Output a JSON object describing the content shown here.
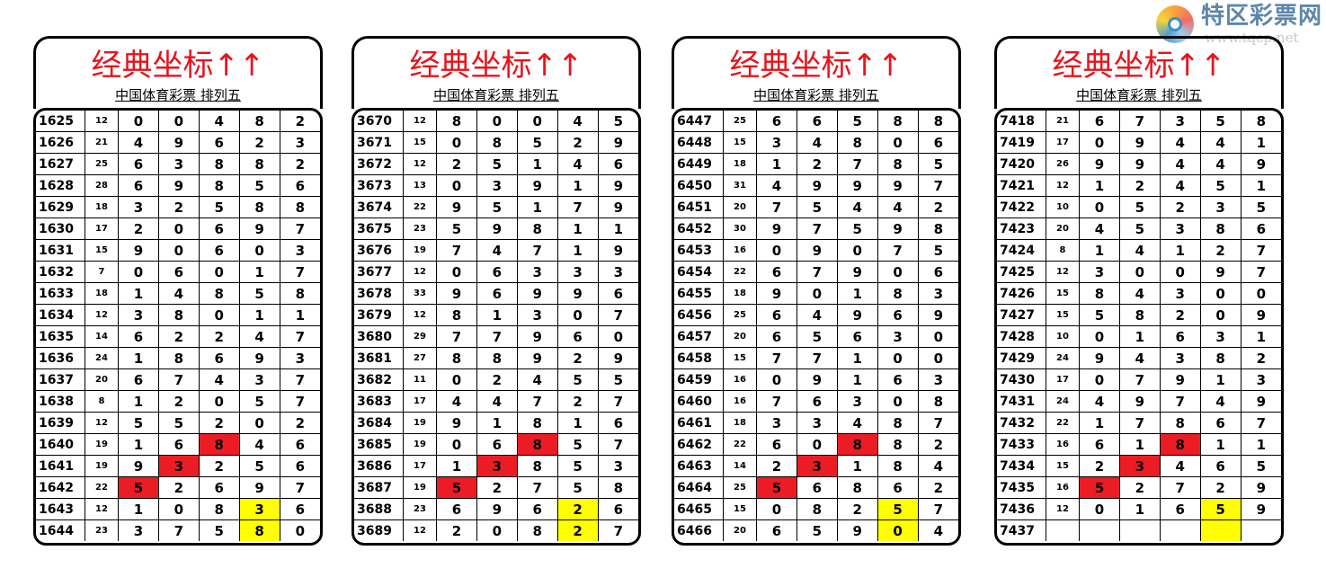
{
  "logo": {
    "name": "特区彩票网",
    "url": "www.tqcp.net"
  },
  "colors": {
    "title": "#e8141c",
    "highlight_red": "#ec1c24",
    "highlight_yellow": "#ffff00"
  },
  "panels": [
    {
      "title": "经典坐标↑↑",
      "subtitle": "中国体育彩票 排列五",
      "rows": [
        [
          "1625",
          "12",
          "0",
          "0",
          "4",
          "8",
          "2"
        ],
        [
          "1626",
          "21",
          "4",
          "9",
          "6",
          "2",
          "3"
        ],
        [
          "1627",
          "25",
          "6",
          "3",
          "8",
          "8",
          "2"
        ],
        [
          "1628",
          "28",
          "6",
          "9",
          "8",
          "5",
          "6"
        ],
        [
          "1629",
          "18",
          "3",
          "2",
          "5",
          "8",
          "8"
        ],
        [
          "1630",
          "17",
          "2",
          "0",
          "6",
          "9",
          "7"
        ],
        [
          "1631",
          "15",
          "9",
          "0",
          "6",
          "0",
          "3"
        ],
        [
          "1632",
          "7",
          "0",
          "6",
          "0",
          "1",
          "7"
        ],
        [
          "1633",
          "18",
          "1",
          "4",
          "8",
          "5",
          "8"
        ],
        [
          "1634",
          "12",
          "3",
          "8",
          "0",
          "1",
          "1"
        ],
        [
          "1635",
          "14",
          "6",
          "2",
          "2",
          "4",
          "7"
        ],
        [
          "1636",
          "24",
          "1",
          "8",
          "6",
          "9",
          "3"
        ],
        [
          "1637",
          "20",
          "6",
          "7",
          "4",
          "3",
          "7"
        ],
        [
          "1638",
          "8",
          "1",
          "2",
          "0",
          "5",
          "7"
        ],
        [
          "1639",
          "12",
          "5",
          "5",
          "2",
          "0",
          "2"
        ],
        [
          "1640",
          "19",
          "1",
          "6",
          "8",
          "4",
          "6"
        ],
        [
          "1641",
          "19",
          "9",
          "3",
          "2",
          "5",
          "6"
        ],
        [
          "1642",
          "22",
          "5",
          "2",
          "6",
          "9",
          "7"
        ],
        [
          "1643",
          "12",
          "1",
          "0",
          "8",
          "3",
          "6"
        ],
        [
          "1644",
          "23",
          "3",
          "7",
          "5",
          "8",
          "0"
        ]
      ],
      "red_cells": [
        [
          15,
          2
        ],
        [
          16,
          1
        ],
        [
          17,
          0
        ]
      ],
      "yellow_cells": [
        [
          18,
          3
        ],
        [
          19,
          3
        ]
      ]
    },
    {
      "title": "经典坐标↑↑",
      "subtitle": "中国体育彩票 排列五",
      "rows": [
        [
          "3670",
          "12",
          "8",
          "0",
          "0",
          "4",
          "5"
        ],
        [
          "3671",
          "15",
          "0",
          "8",
          "5",
          "2",
          "9"
        ],
        [
          "3672",
          "12",
          "2",
          "5",
          "1",
          "4",
          "6"
        ],
        [
          "3673",
          "13",
          "0",
          "3",
          "9",
          "1",
          "9"
        ],
        [
          "3674",
          "22",
          "9",
          "5",
          "1",
          "7",
          "9"
        ],
        [
          "3675",
          "23",
          "5",
          "9",
          "8",
          "1",
          "1"
        ],
        [
          "3676",
          "19",
          "7",
          "4",
          "7",
          "1",
          "9"
        ],
        [
          "3677",
          "12",
          "0",
          "6",
          "3",
          "3",
          "3"
        ],
        [
          "3678",
          "33",
          "9",
          "6",
          "9",
          "9",
          "6"
        ],
        [
          "3679",
          "12",
          "8",
          "1",
          "3",
          "0",
          "7"
        ],
        [
          "3680",
          "29",
          "7",
          "7",
          "9",
          "6",
          "0"
        ],
        [
          "3681",
          "27",
          "8",
          "8",
          "9",
          "2",
          "9"
        ],
        [
          "3682",
          "11",
          "0",
          "2",
          "4",
          "5",
          "5"
        ],
        [
          "3683",
          "17",
          "4",
          "4",
          "7",
          "2",
          "7"
        ],
        [
          "3684",
          "19",
          "9",
          "1",
          "8",
          "1",
          "6"
        ],
        [
          "3685",
          "19",
          "0",
          "6",
          "8",
          "5",
          "7"
        ],
        [
          "3686",
          "17",
          "1",
          "3",
          "8",
          "5",
          "3"
        ],
        [
          "3687",
          "19",
          "5",
          "2",
          "7",
          "5",
          "8"
        ],
        [
          "3688",
          "23",
          "6",
          "9",
          "6",
          "2",
          "6"
        ],
        [
          "3689",
          "12",
          "2",
          "0",
          "8",
          "2",
          "7"
        ]
      ],
      "red_cells": [
        [
          15,
          2
        ],
        [
          16,
          1
        ],
        [
          17,
          0
        ]
      ],
      "yellow_cells": [
        [
          18,
          3
        ],
        [
          19,
          3
        ]
      ]
    },
    {
      "title": "经典坐标↑↑",
      "subtitle": "中国体育彩票 排列五",
      "rows": [
        [
          "6447",
          "25",
          "6",
          "6",
          "5",
          "8",
          "8"
        ],
        [
          "6448",
          "15",
          "3",
          "4",
          "8",
          "0",
          "6"
        ],
        [
          "6449",
          "18",
          "1",
          "2",
          "7",
          "8",
          "5"
        ],
        [
          "6450",
          "31",
          "4",
          "9",
          "9",
          "9",
          "7"
        ],
        [
          "6451",
          "20",
          "7",
          "5",
          "4",
          "4",
          "2"
        ],
        [
          "6452",
          "30",
          "9",
          "7",
          "5",
          "9",
          "8"
        ],
        [
          "6453",
          "16",
          "0",
          "9",
          "0",
          "7",
          "5"
        ],
        [
          "6454",
          "22",
          "6",
          "7",
          "9",
          "0",
          "6"
        ],
        [
          "6455",
          "18",
          "9",
          "0",
          "1",
          "8",
          "3"
        ],
        [
          "6456",
          "25",
          "6",
          "4",
          "9",
          "6",
          "9"
        ],
        [
          "6457",
          "20",
          "6",
          "5",
          "6",
          "3",
          "0"
        ],
        [
          "6458",
          "15",
          "7",
          "7",
          "1",
          "0",
          "0"
        ],
        [
          "6459",
          "16",
          "0",
          "9",
          "1",
          "6",
          "3"
        ],
        [
          "6460",
          "16",
          "7",
          "6",
          "3",
          "0",
          "8"
        ],
        [
          "6461",
          "18",
          "3",
          "3",
          "4",
          "8",
          "7"
        ],
        [
          "6462",
          "22",
          "6",
          "0",
          "8",
          "8",
          "2"
        ],
        [
          "6463",
          "14",
          "2",
          "3",
          "1",
          "8",
          "4"
        ],
        [
          "6464",
          "25",
          "5",
          "6",
          "8",
          "6",
          "2"
        ],
        [
          "6465",
          "15",
          "0",
          "8",
          "2",
          "5",
          "7"
        ],
        [
          "6466",
          "20",
          "6",
          "5",
          "9",
          "0",
          "4"
        ]
      ],
      "red_cells": [
        [
          15,
          2
        ],
        [
          16,
          1
        ],
        [
          17,
          0
        ]
      ],
      "yellow_cells": [
        [
          18,
          3
        ],
        [
          19,
          3
        ]
      ]
    },
    {
      "title": "经典坐标↑↑",
      "subtitle": "中国体育彩票 排列五",
      "rows": [
        [
          "7418",
          "21",
          "6",
          "7",
          "3",
          "5",
          "8"
        ],
        [
          "7419",
          "17",
          "0",
          "9",
          "4",
          "4",
          "1"
        ],
        [
          "7420",
          "26",
          "9",
          "9",
          "4",
          "4",
          "9"
        ],
        [
          "7421",
          "12",
          "1",
          "2",
          "4",
          "5",
          "1"
        ],
        [
          "7422",
          "10",
          "0",
          "5",
          "2",
          "3",
          "5"
        ],
        [
          "7423",
          "20",
          "4",
          "5",
          "3",
          "8",
          "6"
        ],
        [
          "7424",
          "8",
          "1",
          "4",
          "1",
          "2",
          "7"
        ],
        [
          "7425",
          "12",
          "3",
          "0",
          "0",
          "9",
          "7"
        ],
        [
          "7426",
          "15",
          "8",
          "4",
          "3",
          "0",
          "0"
        ],
        [
          "7427",
          "15",
          "5",
          "8",
          "2",
          "0",
          "9"
        ],
        [
          "7428",
          "10",
          "0",
          "1",
          "6",
          "3",
          "1"
        ],
        [
          "7429",
          "24",
          "9",
          "4",
          "3",
          "8",
          "2"
        ],
        [
          "7430",
          "17",
          "0",
          "7",
          "9",
          "1",
          "3"
        ],
        [
          "7431",
          "24",
          "4",
          "9",
          "7",
          "4",
          "9"
        ],
        [
          "7432",
          "22",
          "1",
          "7",
          "8",
          "6",
          "7"
        ],
        [
          "7433",
          "16",
          "6",
          "1",
          "8",
          "1",
          "1"
        ],
        [
          "7434",
          "15",
          "2",
          "3",
          "4",
          "6",
          "5"
        ],
        [
          "7435",
          "16",
          "5",
          "2",
          "7",
          "2",
          "9"
        ],
        [
          "7436",
          "12",
          "0",
          "1",
          "6",
          "5",
          "9"
        ],
        [
          "7437",
          "",
          "",
          "",
          "",
          "",
          ""
        ]
      ],
      "red_cells": [
        [
          15,
          2
        ],
        [
          16,
          1
        ],
        [
          17,
          0
        ]
      ],
      "yellow_cells": [
        [
          18,
          3
        ],
        [
          19,
          3
        ]
      ]
    }
  ]
}
